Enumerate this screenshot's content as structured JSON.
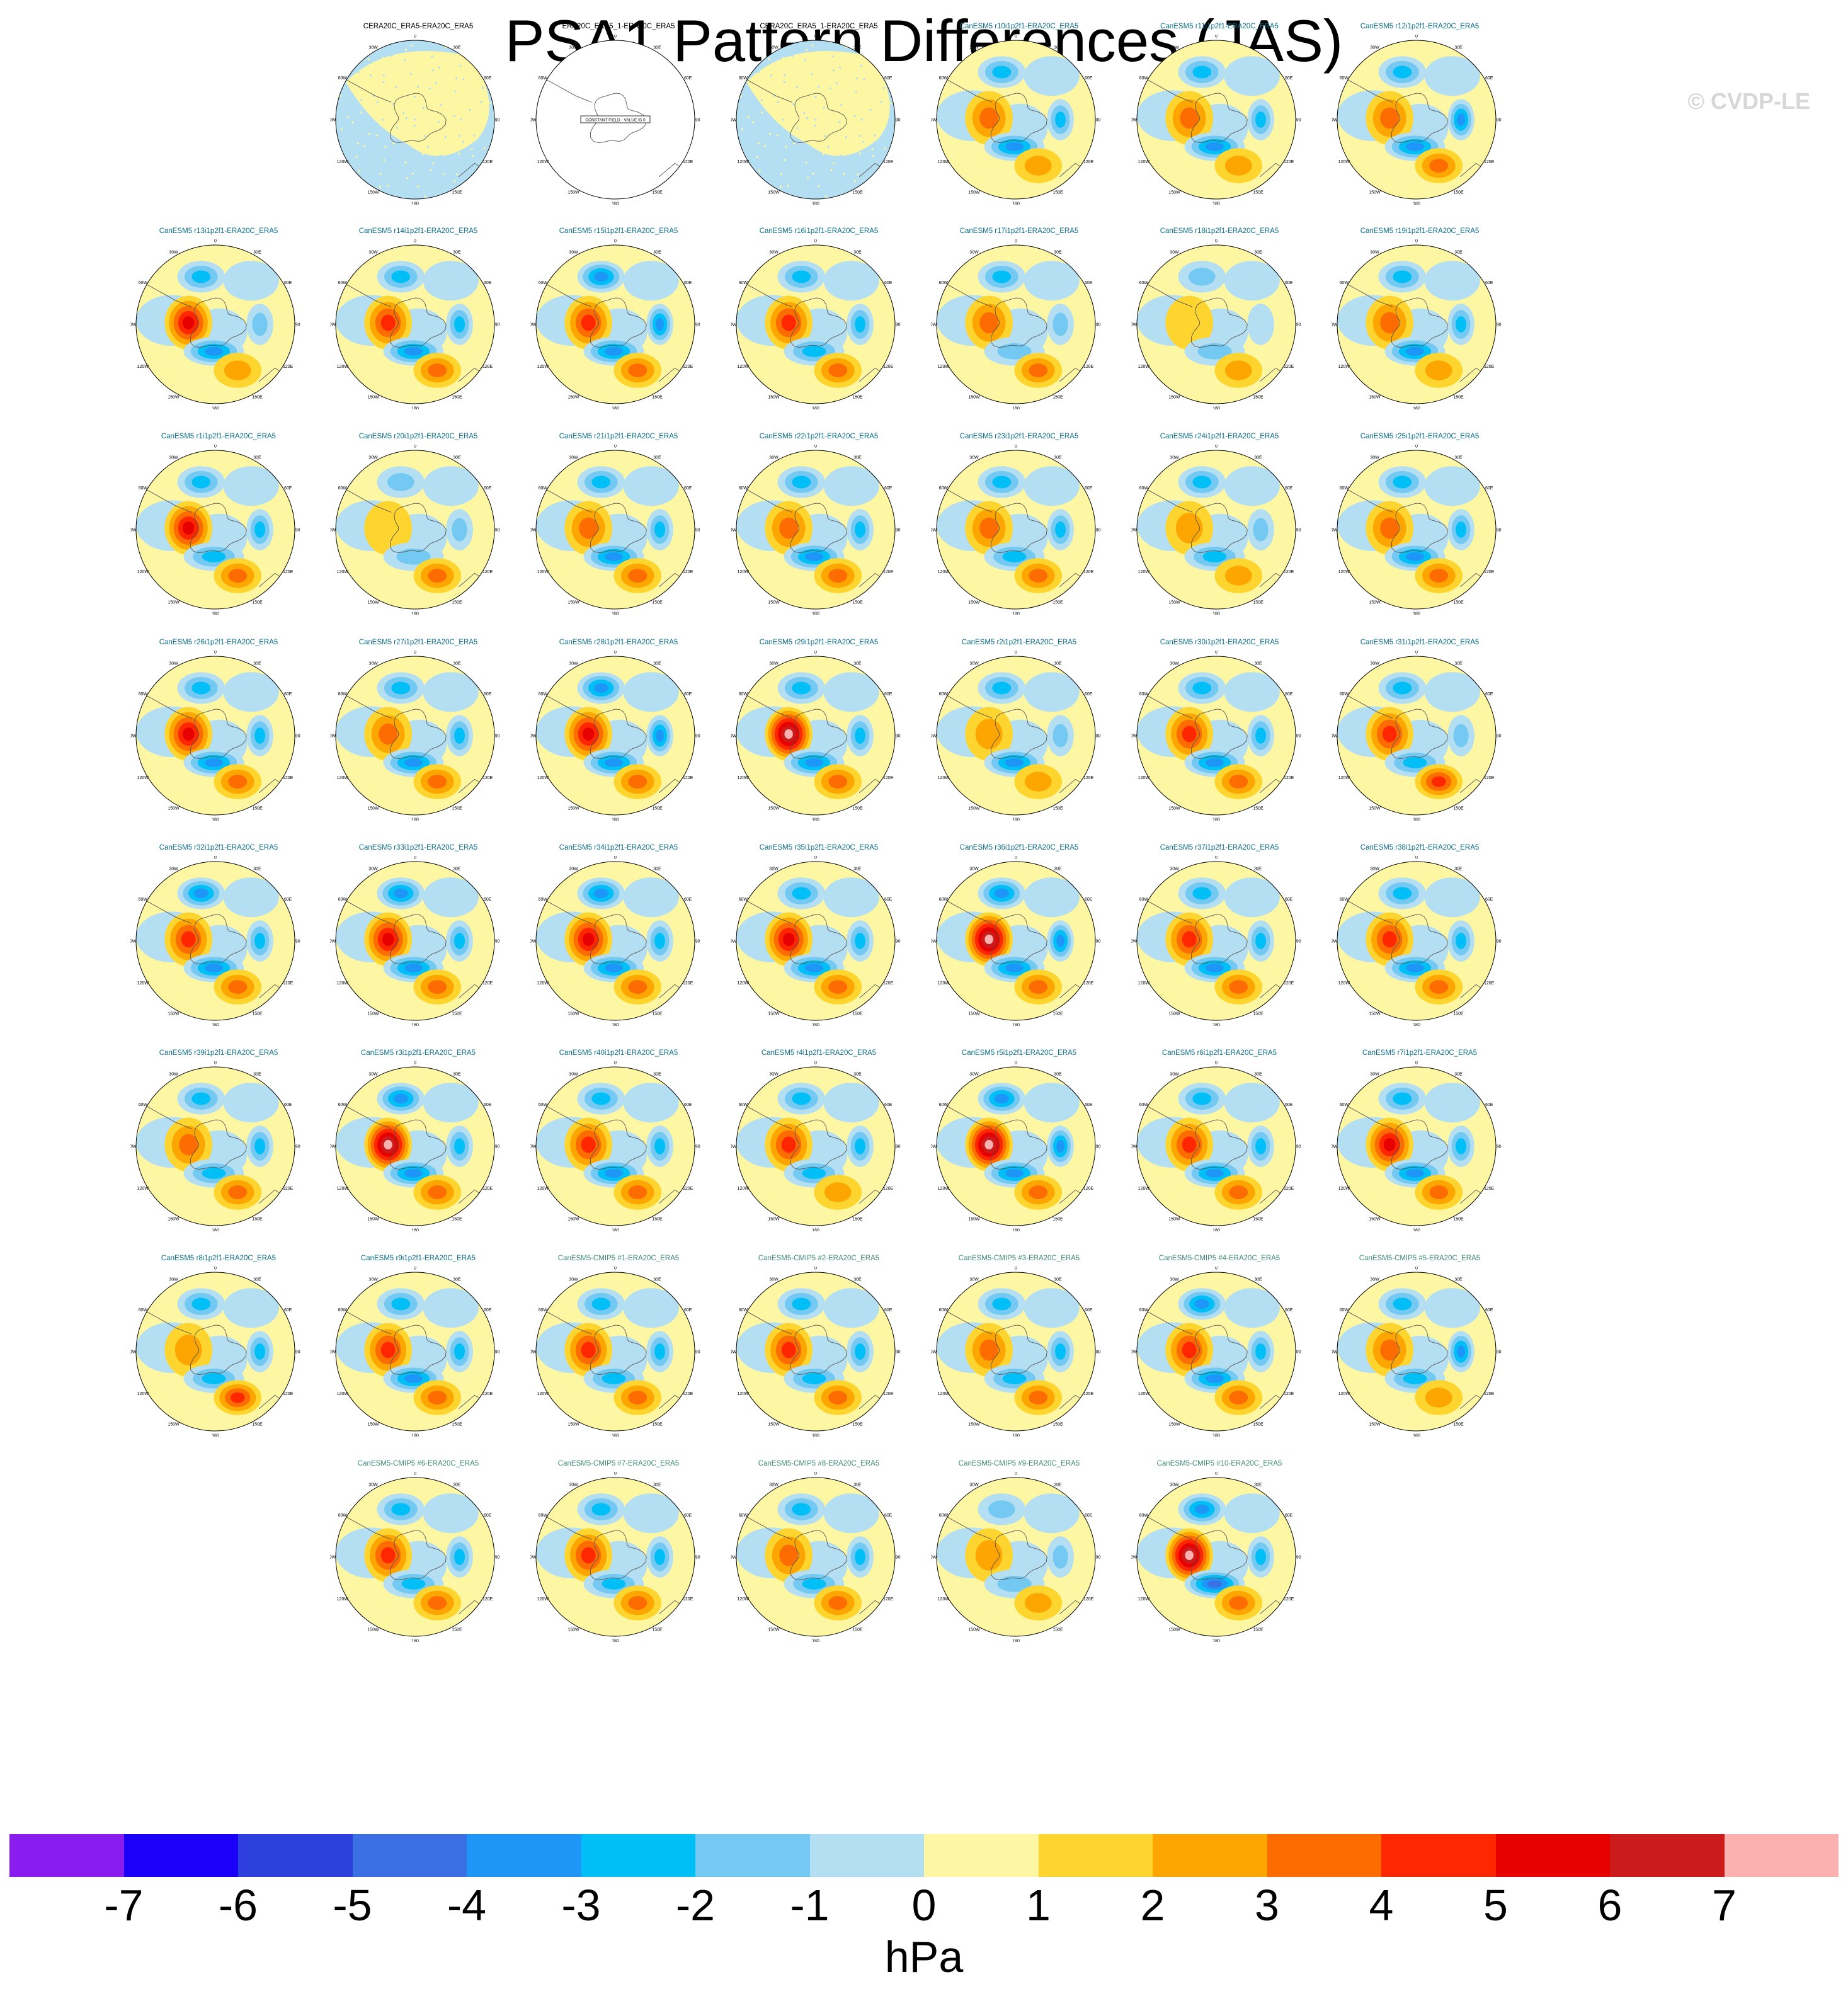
{
  "title": "PSA1 Pattern Differences (JAS)",
  "watermark": "© CVDP-LE",
  "units": "hPa",
  "colorbar": {
    "colors": [
      "#8a1cf0",
      "#1a00f8",
      "#2d3fdc",
      "#3a70e4",
      "#1e96f8",
      "#00bff6",
      "#73c9f1",
      "#b4def2",
      "#fdf7a3",
      "#fed52f",
      "#fda500",
      "#fd6c00",
      "#fe2700",
      "#e60000",
      "#cc1b1b",
      "#fcb1b1"
    ],
    "ticks": [
      "-7",
      "-6",
      "-5",
      "-4",
      "-3",
      "-2",
      "-1",
      "0",
      "1",
      "2",
      "3",
      "4",
      "5",
      "6",
      "7"
    ]
  },
  "polar_labels": [
    "0",
    "30E",
    "60E",
    "90E",
    "120E",
    "150E",
    "180",
    "150W",
    "120W",
    "90W",
    "60W",
    "30W"
  ],
  "constant_field_text": "CONSTANT FIELD - VALUE IS 0",
  "panels": [
    {
      "title": "CERA20C_ERA5-ERA20C_ERA5",
      "color": "#000000",
      "kind": "dots",
      "A": 0,
      "B": 0,
      "C": 0,
      "D": 0,
      "E": 0
    },
    {
      "title": "ERA20C_ERA5_1-ERA20C_ERA5",
      "color": "#000000",
      "kind": "constant",
      "A": 0,
      "B": 0,
      "C": 0,
      "D": 0,
      "E": 0
    },
    {
      "title": "CERA20C_ERA5_1-ERA20C_ERA5",
      "color": "#000000",
      "kind": "dots",
      "A": 0,
      "B": 0,
      "C": 0,
      "D": 0,
      "E": 0
    },
    {
      "title": "CanESM5 r10i1p2f1-ERA20C_ERA5",
      "color": "#0b6d8a",
      "kind": "field",
      "A": 2.5,
      "B": -3.0,
      "C": -3.5,
      "D": 2.0,
      "E": -2.5
    },
    {
      "title": "CanESM5 r11i1p2f1-ERA20C_ERA5",
      "color": "#0b6d8a",
      "kind": "field",
      "A": 3.0,
      "B": -3.0,
      "C": -4.0,
      "D": 2.0,
      "E": -3.0
    },
    {
      "title": "CanESM5 r12i1p2f1-ERA20C_ERA5",
      "color": "#0b6d8a",
      "kind": "field",
      "A": 3.0,
      "B": -3.0,
      "C": -3.5,
      "D": 2.5,
      "E": -3.5
    },
    {
      "title": "CanESM5 r13i1p2f1-ERA20C_ERA5",
      "color": "#0b6d8a",
      "kind": "field",
      "A": 5.0,
      "B": -3.0,
      "C": -4.0,
      "D": 2.0,
      "E": -2.0
    },
    {
      "title": "CanESM5 r14i1p2f1-ERA20C_ERA5",
      "color": "#0b6d8a",
      "kind": "field",
      "A": 3.5,
      "B": -3.0,
      "C": -4.0,
      "D": 3.0,
      "E": -2.5
    },
    {
      "title": "CanESM5 r15i1p2f1-ERA20C_ERA5",
      "color": "#0b6d8a",
      "kind": "field",
      "A": 3.5,
      "B": -4.0,
      "C": -3.5,
      "D": 2.5,
      "E": -3.5
    },
    {
      "title": "CanESM5 r16i1p2f1-ERA20C_ERA5",
      "color": "#0b6d8a",
      "kind": "field",
      "A": 4.0,
      "B": -3.0,
      "C": -3.0,
      "D": 2.5,
      "E": -3.0
    },
    {
      "title": "CanESM5 r17i1p2f1-ERA20C_ERA5",
      "color": "#0b6d8a",
      "kind": "field",
      "A": 2.5,
      "B": -2.5,
      "C": -2.0,
      "D": 3.0,
      "E": -2.0
    },
    {
      "title": "CanESM5 r18i1p2f1-ERA20C_ERA5",
      "color": "#0b6d8a",
      "kind": "field",
      "A": 1.0,
      "B": -1.5,
      "C": -1.5,
      "D": 1.5,
      "E": -1.0
    },
    {
      "title": "CanESM5 r19i1p2f1-ERA20C_ERA5",
      "color": "#0b6d8a",
      "kind": "field",
      "A": 2.5,
      "B": -3.0,
      "C": -3.5,
      "D": 2.0,
      "E": -3.0
    },
    {
      "title": "CanESM5 r1i1p2f1-ERA20C_ERA5",
      "color": "#0b6d8a",
      "kind": "field",
      "A": 4.5,
      "B": -3.0,
      "C": -3.0,
      "D": 2.5,
      "E": -2.5
    },
    {
      "title": "CanESM5 r20i1p2f1-ERA20C_ERA5",
      "color": "#0b6d8a",
      "kind": "field",
      "A": 1.0,
      "B": -1.5,
      "C": -2.0,
      "D": 2.5,
      "E": -1.5
    },
    {
      "title": "CanESM5 r21i1p2f1-ERA20C_ERA5",
      "color": "#0b6d8a",
      "kind": "field",
      "A": 3.0,
      "B": -3.0,
      "C": -3.5,
      "D": 2.5,
      "E": -3.0
    },
    {
      "title": "CanESM5 r22i1p2f1-ERA20C_ERA5",
      "color": "#0b6d8a",
      "kind": "field",
      "A": 3.0,
      "B": -3.0,
      "C": -3.5,
      "D": 2.5,
      "E": -3.0
    },
    {
      "title": "CanESM5 r23i1p2f1-ERA20C_ERA5",
      "color": "#0b6d8a",
      "kind": "field",
      "A": 2.5,
      "B": -3.0,
      "C": -3.0,
      "D": 2.5,
      "E": -3.0
    },
    {
      "title": "CanESM5 r24i1p2f1-ERA20C_ERA5",
      "color": "#0b6d8a",
      "kind": "field",
      "A": 1.5,
      "B": -3.0,
      "C": -2.5,
      "D": 2.0,
      "E": -2.0
    },
    {
      "title": "CanESM5 r25i1p2f1-ERA20C_ERA5",
      "color": "#0b6d8a",
      "kind": "field",
      "A": 3.0,
      "B": -3.0,
      "C": -3.5,
      "D": 2.5,
      "E": -3.0
    },
    {
      "title": "CanESM5 r26i1p2f1-ERA20C_ERA5",
      "color": "#0b6d8a",
      "kind": "field",
      "A": 4.5,
      "B": -3.0,
      "C": -3.5,
      "D": 2.5,
      "E": -2.5
    },
    {
      "title": "CanESM5 r27i1p2f1-ERA20C_ERA5",
      "color": "#0b6d8a",
      "kind": "field",
      "A": 3.0,
      "B": -3.0,
      "C": -3.5,
      "D": 2.5,
      "E": -3.0
    },
    {
      "title": "CanESM5 r28i1p2f1-ERA20C_ERA5",
      "color": "#0b6d8a",
      "kind": "field",
      "A": 5.0,
      "B": -3.5,
      "C": -4.0,
      "D": 3.0,
      "E": -3.5
    },
    {
      "title": "CanESM5 r29i1p2f1-ERA20C_ERA5",
      "color": "#0b6d8a",
      "kind": "field",
      "A": 7.0,
      "B": -3.0,
      "C": -4.0,
      "D": 3.0,
      "E": -2.5
    },
    {
      "title": "CanESM5 r2i1p2f1-ERA20C_ERA5",
      "color": "#0b6d8a",
      "kind": "field",
      "A": 1.5,
      "B": -2.5,
      "C": -4.0,
      "D": 2.0,
      "E": -2.0
    },
    {
      "title": "CanESM5 r30i1p2f1-ERA20C_ERA5",
      "color": "#0b6d8a",
      "kind": "field",
      "A": 4.0,
      "B": -3.0,
      "C": -4.0,
      "D": 2.5,
      "E": -3.0
    },
    {
      "title": "CanESM5 r31i1p2f1-ERA20C_ERA5",
      "color": "#0b6d8a",
      "kind": "field",
      "A": 3.5,
      "B": -2.5,
      "C": -3.0,
      "D": 3.5,
      "E": -2.0
    },
    {
      "title": "CanESM5 r32i1p2f1-ERA20C_ERA5",
      "color": "#0b6d8a",
      "kind": "field",
      "A": 4.0,
      "B": -3.5,
      "C": -3.5,
      "D": 2.5,
      "E": -3.0
    },
    {
      "title": "CanESM5 r33i1p2f1-ERA20C_ERA5",
      "color": "#0b6d8a",
      "kind": "field",
      "A": 5.0,
      "B": -3.5,
      "C": -3.5,
      "D": 2.5,
      "E": -3.0
    },
    {
      "title": "CanESM5 r34i1p2f1-ERA20C_ERA5",
      "color": "#0b6d8a",
      "kind": "field",
      "A": 5.0,
      "B": -3.5,
      "C": -3.5,
      "D": 2.5,
      "E": -3.0
    },
    {
      "title": "CanESM5 r35i1p2f1-ERA20C_ERA5",
      "color": "#0b6d8a",
      "kind": "field",
      "A": 4.5,
      "B": -3.0,
      "C": -4.0,
      "D": 3.0,
      "E": -2.5
    },
    {
      "title": "CanESM5 r36i1p2f1-ERA20C_ERA5",
      "color": "#0b6d8a",
      "kind": "field",
      "A": 6.5,
      "B": -3.5,
      "C": -4.0,
      "D": 2.5,
      "E": -3.5
    },
    {
      "title": "CanESM5 r37i1p2f1-ERA20C_ERA5",
      "color": "#0b6d8a",
      "kind": "field",
      "A": 3.5,
      "B": -3.0,
      "C": -3.5,
      "D": 2.5,
      "E": -3.0
    },
    {
      "title": "CanESM5 r38i1p2f1-ERA20C_ERA5",
      "color": "#0b6d8a",
      "kind": "field",
      "A": 4.0,
      "B": -3.0,
      "C": -3.5,
      "D": 2.5,
      "E": -3.0
    },
    {
      "title": "CanESM5 r39i1p2f1-ERA20C_ERA5",
      "color": "#0b6d8a",
      "kind": "field",
      "A": 2.5,
      "B": -2.5,
      "C": -3.0,
      "D": 2.5,
      "E": -2.5
    },
    {
      "title": "CanESM5 r3i1p2f1-ERA20C_ERA5",
      "color": "#0b6d8a",
      "kind": "field",
      "A": 6.5,
      "B": -3.5,
      "C": -3.5,
      "D": 2.5,
      "E": -3.0
    },
    {
      "title": "CanESM5 r40i1p2f1-ERA20C_ERA5",
      "color": "#0b6d8a",
      "kind": "field",
      "A": 4.0,
      "B": -3.0,
      "C": -3.5,
      "D": 2.5,
      "E": -3.0
    },
    {
      "title": "CanESM5 r4i1p2f1-ERA20C_ERA5",
      "color": "#0b6d8a",
      "kind": "field",
      "A": 3.5,
      "B": -3.0,
      "C": -3.0,
      "D": 2.0,
      "E": -3.0
    },
    {
      "title": "CanESM5 r5i1p2f1-ERA20C_ERA5",
      "color": "#0b6d8a",
      "kind": "field",
      "A": 6.5,
      "B": -3.5,
      "C": -3.5,
      "D": 2.5,
      "E": -3.5
    },
    {
      "title": "CanESM5 r6i1p2f1-ERA20C_ERA5",
      "color": "#0b6d8a",
      "kind": "field",
      "A": 3.5,
      "B": -3.0,
      "C": -4.0,
      "D": 2.5,
      "E": -3.0
    },
    {
      "title": "CanESM5 r7i1p2f1-ERA20C_ERA5",
      "color": "#0b6d8a",
      "kind": "field",
      "A": 5.0,
      "B": -3.0,
      "C": -3.5,
      "D": 2.5,
      "E": -3.0
    },
    {
      "title": "CanESM5 r8i1p2f1-ERA20C_ERA5",
      "color": "#0b6d8a",
      "kind": "field",
      "A": 2.0,
      "B": -3.0,
      "C": -2.5,
      "D": 3.5,
      "E": -2.5
    },
    {
      "title": "CanESM5 r9i1p2f1-ERA20C_ERA5",
      "color": "#0b6d8a",
      "kind": "field",
      "A": 4.0,
      "B": -3.0,
      "C": -3.5,
      "D": 2.5,
      "E": -3.0
    },
    {
      "title": "CanESM5-CMIP5 #1-ERA20C_ERA5",
      "color": "#3f8a7a",
      "kind": "field",
      "A": 3.5,
      "B": -3.0,
      "C": -3.0,
      "D": 2.5,
      "E": -3.0
    },
    {
      "title": "CanESM5-CMIP5 #2-ERA20C_ERA5",
      "color": "#3f8a7a",
      "kind": "field",
      "A": 3.5,
      "B": -3.0,
      "C": -3.0,
      "D": 2.5,
      "E": -3.0
    },
    {
      "title": "CanESM5-CMIP5 #3-ERA20C_ERA5",
      "color": "#3f8a7a",
      "kind": "field",
      "A": 3.0,
      "B": -3.0,
      "C": -3.0,
      "D": 2.5,
      "E": -3.0
    },
    {
      "title": "CanESM5-CMIP5 #4-ERA20C_ERA5",
      "color": "#3f8a7a",
      "kind": "field",
      "A": 4.0,
      "B": -3.5,
      "C": -3.5,
      "D": 2.5,
      "E": -3.0
    },
    {
      "title": "CanESM5-CMIP5 #5-ERA20C_ERA5",
      "color": "#3f8a7a",
      "kind": "field",
      "A": 2.5,
      "B": -3.0,
      "C": -3.0,
      "D": 2.0,
      "E": -3.5
    },
    {
      "title": "CanESM5-CMIP5 #6-ERA20C_ERA5",
      "color": "#3f8a7a",
      "kind": "field",
      "A": 3.5,
      "B": -3.0,
      "C": -3.0,
      "D": 2.5,
      "E": -2.5
    },
    {
      "title": "CanESM5-CMIP5 #7-ERA20C_ERA5",
      "color": "#3f8a7a",
      "kind": "field",
      "A": 4.0,
      "B": -3.0,
      "C": -3.0,
      "D": 2.5,
      "E": -2.5
    },
    {
      "title": "CanESM5-CMIP5 #8-ERA20C_ERA5",
      "color": "#3f8a7a",
      "kind": "field",
      "A": 3.0,
      "B": -3.0,
      "C": -3.0,
      "D": 2.5,
      "E": -2.5
    },
    {
      "title": "CanESM5-CMIP5 #9-ERA20C_ERA5",
      "color": "#3f8a7a",
      "kind": "field",
      "A": 1.5,
      "B": -2.0,
      "C": -2.0,
      "D": 2.0,
      "E": -2.0
    },
    {
      "title": "CanESM5-CMIP5 #10-ERA20C_ERA5",
      "color": "#3f8a7a",
      "kind": "field",
      "A": 7.0,
      "B": -3.5,
      "C": -4.5,
      "D": 3.0,
      "E": -3.0
    }
  ]
}
